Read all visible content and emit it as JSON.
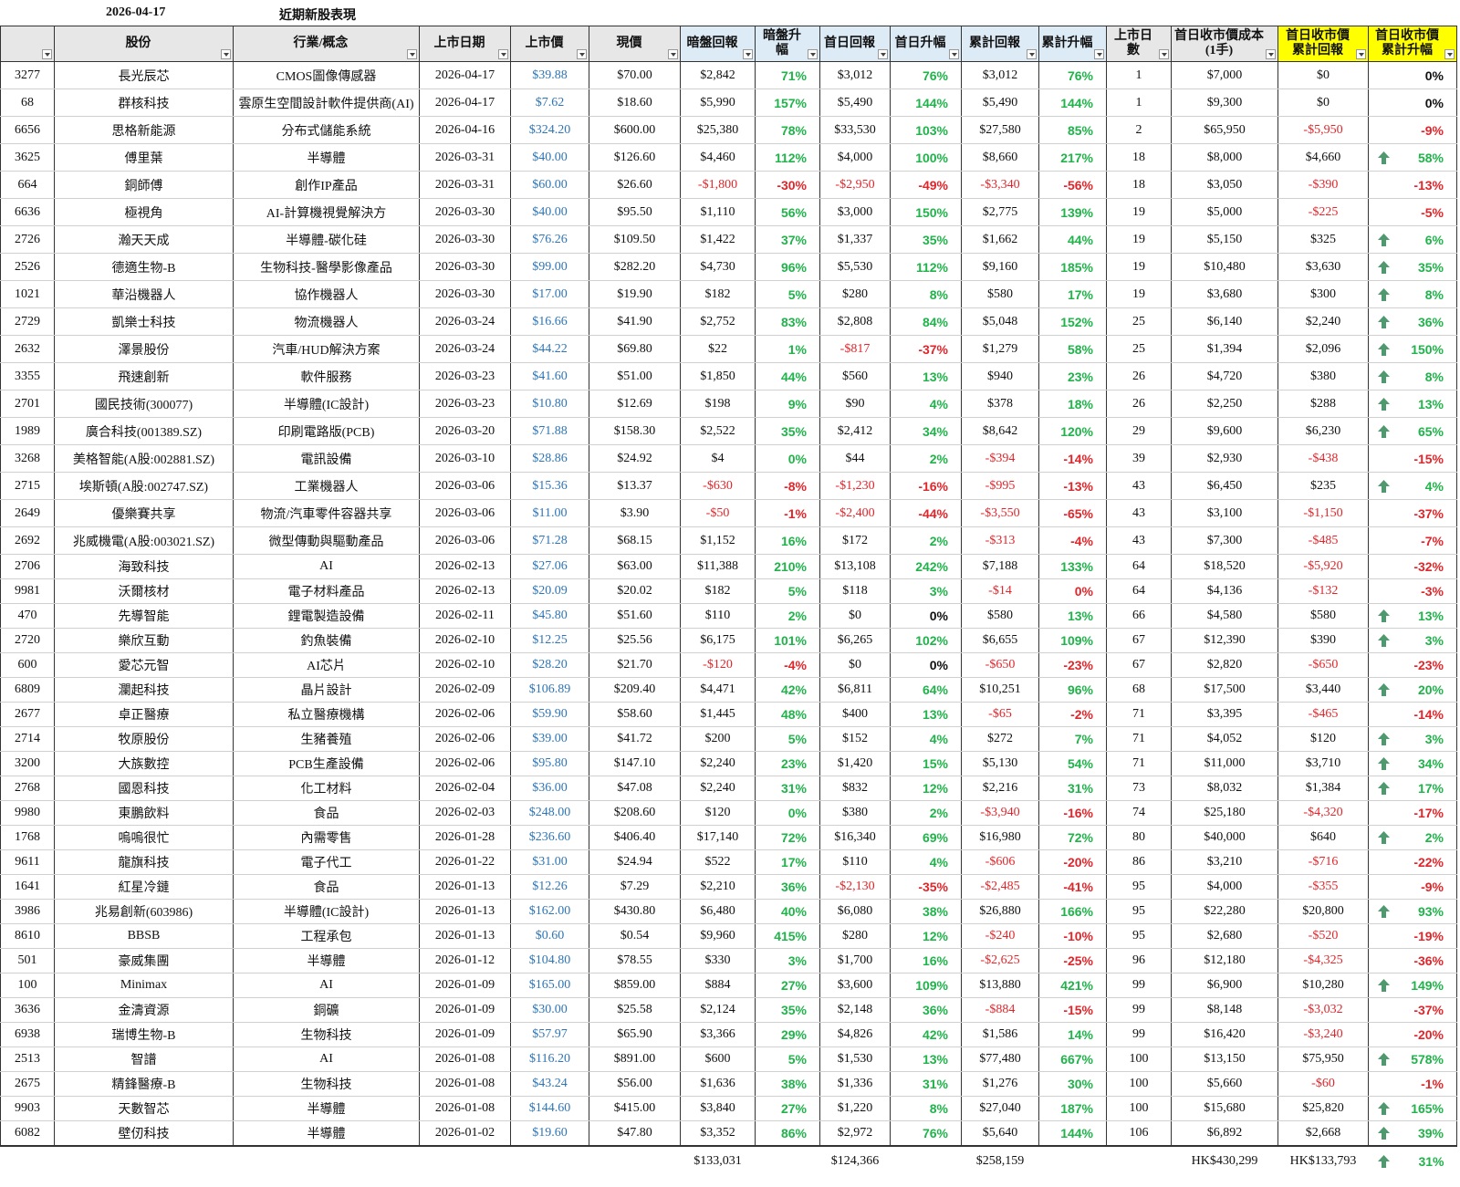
{
  "top": {
    "date": "2026-04-17",
    "title": "近期新股表現"
  },
  "table": {
    "header": [
      "",
      "股份",
      "行業/概念",
      "上市日期",
      "上市價",
      "現價",
      "暗盤回報",
      "暗盤升幅",
      "首日回報",
      "首日升幅",
      "累計回報",
      "累計升幅",
      "上市日數",
      [
        "首日收市價成本",
        "(1手)"
      ],
      [
        "首日收市價",
        "累計回報"
      ],
      [
        "首日收市價",
        "累計升幅"
      ]
    ],
    "rows": [
      [
        "3277",
        "長光辰芯",
        "CMOS圖像傳感器",
        "2026-04-17",
        "$39.88",
        "$70.00",
        "$2,842",
        "71%",
        "$3,012",
        "76%",
        "$3,012",
        "76%",
        "1",
        "$7,000",
        "$0",
        "0%"
      ],
      [
        "68",
        "群核科技",
        "雲原生空間設計軟件提供商(AI)",
        "2026-04-17",
        "$7.62",
        "$18.60",
        "$5,990",
        "157%",
        "$5,490",
        "144%",
        "$5,490",
        "144%",
        "1",
        "$9,300",
        "$0",
        "0%"
      ],
      [
        "6656",
        "思格新能源",
        "分布式儲能系統",
        "2026-04-16",
        "$324.20",
        "$600.00",
        "$25,380",
        "78%",
        "$33,530",
        "103%",
        "$27,580",
        "85%",
        "2",
        "$65,950",
        "-$5,950",
        "-9%"
      ],
      [
        "3625",
        "傅里葉",
        "半導體",
        "2026-03-31",
        "$40.00",
        "$126.60",
        "$4,460",
        "112%",
        "$4,000",
        "100%",
        "$8,660",
        "217%",
        "18",
        "$8,000",
        "$4,660",
        "58%"
      ],
      [
        "664",
        "銅師傅",
        "創作IP產品",
        "2026-03-31",
        "$60.00",
        "$26.60",
        "-$1,800",
        "-30%",
        "-$2,950",
        "-49%",
        "-$3,340",
        "-56%",
        "18",
        "$3,050",
        "-$390",
        "-13%"
      ],
      [
        "6636",
        "極視角",
        "AI-計算機視覺解決方",
        "2026-03-30",
        "$40.00",
        "$95.50",
        "$1,110",
        "56%",
        "$3,000",
        "150%",
        "$2,775",
        "139%",
        "19",
        "$5,000",
        "-$225",
        "-5%"
      ],
      [
        "2726",
        "瀚天天成",
        "半導體-碳化硅",
        "2026-03-30",
        "$76.26",
        "$109.50",
        "$1,422",
        "37%",
        "$1,337",
        "35%",
        "$1,662",
        "44%",
        "19",
        "$5,150",
        "$325",
        "6%"
      ],
      [
        "2526",
        "德適生物-B",
        "生物科技-醫學影像產品",
        "2026-03-30",
        "$99.00",
        "$282.20",
        "$4,730",
        "96%",
        "$5,530",
        "112%",
        "$9,160",
        "185%",
        "19",
        "$10,480",
        "$3,630",
        "35%"
      ],
      [
        "1021",
        "華沿機器人",
        "協作機器人",
        "2026-03-30",
        "$17.00",
        "$19.90",
        "$182",
        "5%",
        "$280",
        "8%",
        "$580",
        "17%",
        "19",
        "$3,680",
        "$300",
        "8%"
      ],
      [
        "2729",
        "凱樂士科技",
        "物流機器人",
        "2026-03-24",
        "$16.66",
        "$41.90",
        "$2,752",
        "83%",
        "$2,808",
        "84%",
        "$5,048",
        "152%",
        "25",
        "$6,140",
        "$2,240",
        "36%"
      ],
      [
        "2632",
        "澤景股份",
        "汽車/HUD解決方案",
        "2026-03-24",
        "$44.22",
        "$69.80",
        "$22",
        "1%",
        "-$817",
        "-37%",
        "$1,279",
        "58%",
        "25",
        "$1,394",
        "$2,096",
        "150%"
      ],
      [
        "3355",
        "飛速創新",
        "軟件服務",
        "2026-03-23",
        "$41.60",
        "$51.00",
        "$1,850",
        "44%",
        "$560",
        "13%",
        "$940",
        "23%",
        "26",
        "$4,720",
        "$380",
        "8%"
      ],
      [
        "2701",
        "國民技術(300077)",
        "半導體(IC設計)",
        "2026-03-23",
        "$10.80",
        "$12.69",
        "$198",
        "9%",
        "$90",
        "4%",
        "$378",
        "18%",
        "26",
        "$2,250",
        "$288",
        "13%"
      ],
      [
        "1989",
        "廣合科技(001389.SZ)",
        "印刷電路版(PCB)",
        "2026-03-20",
        "$71.88",
        "$158.30",
        "$2,522",
        "35%",
        "$2,412",
        "34%",
        "$8,642",
        "120%",
        "29",
        "$9,600",
        "$6,230",
        "65%"
      ],
      [
        "3268",
        "美格智能(A股:002881.SZ)",
        "電訊設備",
        "2026-03-10",
        "$28.86",
        "$24.92",
        "$4",
        "0%",
        "$44",
        "2%",
        "-$394",
        "-14%",
        "39",
        "$2,930",
        "-$438",
        "-15%"
      ],
      [
        "2715",
        "埃斯頓(A股:002747.SZ)",
        "工業機器人",
        "2026-03-06",
        "$15.36",
        "$13.37",
        "-$630",
        "-8%",
        "-$1,230",
        "-16%",
        "-$995",
        "-13%",
        "43",
        "$6,450",
        "$235",
        "4%"
      ],
      [
        "2649",
        "優樂賽共享",
        "物流/汽車零件容器共享",
        "2026-03-06",
        "$11.00",
        "$3.90",
        "-$50",
        "-1%",
        "-$2,400",
        "-44%",
        "-$3,550",
        "-65%",
        "43",
        "$3,100",
        "-$1,150",
        "-37%"
      ],
      [
        "2692",
        "兆威機電(A股:003021.SZ)",
        "微型傳動與驅動產品",
        "2026-03-06",
        "$71.28",
        "$68.15",
        "$1,152",
        "16%",
        "$172",
        "2%",
        "-$313",
        "-4%",
        "43",
        "$7,300",
        "-$485",
        "-7%"
      ],
      [
        "2706",
        "海致科技",
        "AI",
        "2026-02-13",
        "$27.06",
        "$63.00",
        "$11,388",
        "210%",
        "$13,108",
        "242%",
        "$7,188",
        "133%",
        "64",
        "$18,520",
        "-$5,920",
        "-32%"
      ],
      [
        "9981",
        "沃爾核材",
        "電子材料產品",
        "2026-02-13",
        "$20.09",
        "$20.02",
        "$182",
        "5%",
        "$118",
        "3%",
        "-$14",
        "0%",
        "64",
        "$4,136",
        "-$132",
        "-3%"
      ],
      [
        "470",
        "先導智能",
        "鋰電製造設備",
        "2026-02-11",
        "$45.80",
        "$51.60",
        "$110",
        "2%",
        "$0",
        "0%",
        "$580",
        "13%",
        "66",
        "$4,580",
        "$580",
        "13%"
      ],
      [
        "2720",
        "樂欣互動",
        "釣魚裝備",
        "2026-02-10",
        "$12.25",
        "$25.56",
        "$6,175",
        "101%",
        "$6,265",
        "102%",
        "$6,655",
        "109%",
        "67",
        "$12,390",
        "$390",
        "3%"
      ],
      [
        "600",
        "愛芯元智",
        "AI芯片",
        "2026-02-10",
        "$28.20",
        "$21.70",
        "-$120",
        "-4%",
        "$0",
        "0%",
        "-$650",
        "-23%",
        "67",
        "$2,820",
        "-$650",
        "-23%"
      ],
      [
        "6809",
        "瀾起科技",
        "晶片設計",
        "2026-02-09",
        "$106.89",
        "$209.40",
        "$4,471",
        "42%",
        "$6,811",
        "64%",
        "$10,251",
        "96%",
        "68",
        "$17,500",
        "$3,440",
        "20%"
      ],
      [
        "2677",
        "卓正醫療",
        "私立醫療機構",
        "2026-02-06",
        "$59.90",
        "$58.60",
        "$1,445",
        "48%",
        "$400",
        "13%",
        "-$65",
        "-2%",
        "71",
        "$3,395",
        "-$465",
        "-14%"
      ],
      [
        "2714",
        "牧原股份",
        "生豬養殖",
        "2026-02-06",
        "$39.00",
        "$41.72",
        "$200",
        "5%",
        "$152",
        "4%",
        "$272",
        "7%",
        "71",
        "$4,052",
        "$120",
        "3%"
      ],
      [
        "3200",
        "大族數控",
        "PCB生產設備",
        "2026-02-06",
        "$95.80",
        "$147.10",
        "$2,240",
        "23%",
        "$1,420",
        "15%",
        "$5,130",
        "54%",
        "71",
        "$11,000",
        "$3,710",
        "34%"
      ],
      [
        "2768",
        "國恩科技",
        "化工材料",
        "2026-02-04",
        "$36.00",
        "$47.08",
        "$2,240",
        "31%",
        "$832",
        "12%",
        "$2,216",
        "31%",
        "73",
        "$8,032",
        "$1,384",
        "17%"
      ],
      [
        "9980",
        "東鵬飲料",
        "食品",
        "2026-02-03",
        "$248.00",
        "$208.60",
        "$120",
        "0%",
        "$380",
        "2%",
        "-$3,940",
        "-16%",
        "74",
        "$25,180",
        "-$4,320",
        "-17%"
      ],
      [
        "1768",
        "嗚嗚很忙",
        "內需零售",
        "2026-01-28",
        "$236.60",
        "$406.40",
        "$17,140",
        "72%",
        "$16,340",
        "69%",
        "$16,980",
        "72%",
        "80",
        "$40,000",
        "$640",
        "2%"
      ],
      [
        "9611",
        "龍旗科技",
        "電子代工",
        "2026-01-22",
        "$31.00",
        "$24.94",
        "$522",
        "17%",
        "$110",
        "4%",
        "-$606",
        "-20%",
        "86",
        "$3,210",
        "-$716",
        "-22%"
      ],
      [
        "1641",
        "紅星冷鏈",
        "食品",
        "2026-01-13",
        "$12.26",
        "$7.29",
        "$2,210",
        "36%",
        "-$2,130",
        "-35%",
        "-$2,485",
        "-41%",
        "95",
        "$4,000",
        "-$355",
        "-9%"
      ],
      [
        "3986",
        "兆易創新(603986)",
        "半導體(IC設計)",
        "2026-01-13",
        "$162.00",
        "$430.80",
        "$6,480",
        "40%",
        "$6,080",
        "38%",
        "$26,880",
        "166%",
        "95",
        "$22,280",
        "$20,800",
        "93%"
      ],
      [
        "8610",
        "BBSB",
        "工程承包",
        "2026-01-13",
        "$0.60",
        "$0.54",
        "$9,960",
        "415%",
        "$280",
        "12%",
        "-$240",
        "-10%",
        "95",
        "$2,680",
        "-$520",
        "-19%"
      ],
      [
        "501",
        "豪威集團",
        "半導體",
        "2026-01-12",
        "$104.80",
        "$78.55",
        "$330",
        "3%",
        "$1,700",
        "16%",
        "-$2,625",
        "-25%",
        "96",
        "$12,180",
        "-$4,325",
        "-36%"
      ],
      [
        "100",
        "Minimax",
        "AI",
        "2026-01-09",
        "$165.00",
        "$859.00",
        "$884",
        "27%",
        "$3,600",
        "109%",
        "$13,880",
        "421%",
        "99",
        "$6,900",
        "$10,280",
        "149%"
      ],
      [
        "3636",
        "金濤資源",
        "銅礦",
        "2026-01-09",
        "$30.00",
        "$25.58",
        "$2,124",
        "35%",
        "$2,148",
        "36%",
        "-$884",
        "-15%",
        "99",
        "$8,148",
        "-$3,032",
        "-37%"
      ],
      [
        "6938",
        "瑞博生物-B",
        "生物科技",
        "2026-01-09",
        "$57.97",
        "$65.90",
        "$3,366",
        "29%",
        "$4,826",
        "42%",
        "$1,586",
        "14%",
        "99",
        "$16,420",
        "-$3,240",
        "-20%"
      ],
      [
        "2513",
        "智譜",
        "AI",
        "2026-01-08",
        "$116.20",
        "$891.00",
        "$600",
        "5%",
        "$1,530",
        "13%",
        "$77,480",
        "667%",
        "100",
        "$13,150",
        "$75,950",
        "578%"
      ],
      [
        "2675",
        "精鋒醫療-B",
        "生物科技",
        "2026-01-08",
        "$43.24",
        "$56.00",
        "$1,636",
        "38%",
        "$1,336",
        "31%",
        "$1,276",
        "30%",
        "100",
        "$5,660",
        "-$60",
        "-1%"
      ],
      [
        "9903",
        "天數智芯",
        "半導體",
        "2026-01-08",
        "$144.60",
        "$415.00",
        "$3,840",
        "27%",
        "$1,220",
        "8%",
        "$27,040",
        "187%",
        "100",
        "$15,680",
        "$25,820",
        "165%"
      ],
      [
        "6082",
        "壁仞科技",
        "半導體",
        "2026-01-02",
        "$19.60",
        "$47.80",
        "$3,352",
        "86%",
        "$2,972",
        "76%",
        "$5,640",
        "144%",
        "106",
        "$6,892",
        "$2,668",
        "39%"
      ]
    ],
    "totals": {
      "dark_return": "$133,031",
      "first_day_return": "$124,366",
      "cumulative_return": "$258,159",
      "first_close_cost": "HK$430,299",
      "first_close_cumulative_return": "HK$133,793",
      "first_close_cumulative_pct": "31%"
    }
  }
}
